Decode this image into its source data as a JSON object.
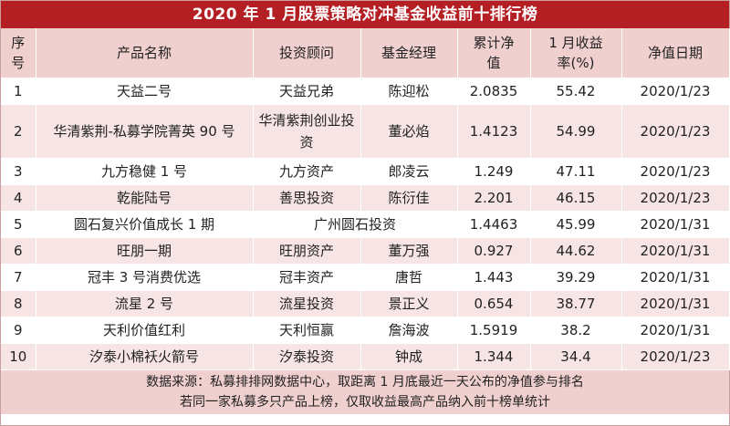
{
  "title": "2020 年 1 月股票策略对冲基金收益前十排行榜",
  "headers": [
    "序号",
    "产品名称",
    "投资顾问",
    "基金经理",
    "累计净值",
    "1 月收益率(%)",
    "净值日期"
  ],
  "rows": [
    {
      "no": "1",
      "product": "天益二号",
      "advisor": "天益兄弟",
      "manager": "陈迎松",
      "nav": "2.0835",
      "ret": "55.42",
      "date": "2020/1/23"
    },
    {
      "no": "2",
      "product": "华清紫荆-私募学院菁英 90 号",
      "advisor": "华清紫荆创业投资",
      "manager": "董必焰",
      "nav": "1.4123",
      "ret": "54.99",
      "date": "2020/1/23"
    },
    {
      "no": "3",
      "product": "九方稳健 1 号",
      "advisor": "九方资产",
      "manager": "郎凌云",
      "nav": "1.249",
      "ret": "47.11",
      "date": "2020/1/23"
    },
    {
      "no": "4",
      "product": "乾能陆号",
      "advisor": "善思投资",
      "manager": "陈衍佳",
      "nav": "2.201",
      "ret": "46.15",
      "date": "2020/1/23"
    },
    {
      "no": "5",
      "product": "圆石复兴价值成长 1 期",
      "advisor": "广州圆石投资",
      "manager": "",
      "nav": "1.4463",
      "ret": "45.99",
      "date": "2020/1/31"
    },
    {
      "no": "6",
      "product": "旺朋一期",
      "advisor": "旺朋资产",
      "manager": "董万强",
      "nav": "0.927",
      "ret": "44.62",
      "date": "2020/1/31"
    },
    {
      "no": "7",
      "product": "冠丰 3 号消费优选",
      "advisor": "冠丰资产",
      "manager": "唐哲",
      "nav": "1.443",
      "ret": "39.29",
      "date": "2020/1/31"
    },
    {
      "no": "8",
      "product": "流星 2 号",
      "advisor": "流星投资",
      "manager": "景正义",
      "nav": "0.654",
      "ret": "38.77",
      "date": "2020/1/31"
    },
    {
      "no": "9",
      "product": "天利价值红利",
      "advisor": "天利恒赢",
      "manager": "詹海波",
      "nav": "1.5919",
      "ret": "38.2",
      "date": "2020/1/31"
    },
    {
      "no": "10",
      "product": "汐泰小棉袄火箭号",
      "advisor": "汐泰投资",
      "manager": "钟成",
      "nav": "1.344",
      "ret": "34.4",
      "date": "2020/1/23"
    }
  ],
  "footer": {
    "line1": "数据来源：私募排排网数据中心，取距离 1 月底最近一天公布的净值参与排名",
    "line2": "若同一家私募多只产品上榜，仅取收益最高产品纳入前十榜单统计"
  },
  "colors": {
    "title_bg": "#b41f24",
    "header_bg": "#f0cfcf",
    "stripe_bg": "#f7e4e4"
  }
}
